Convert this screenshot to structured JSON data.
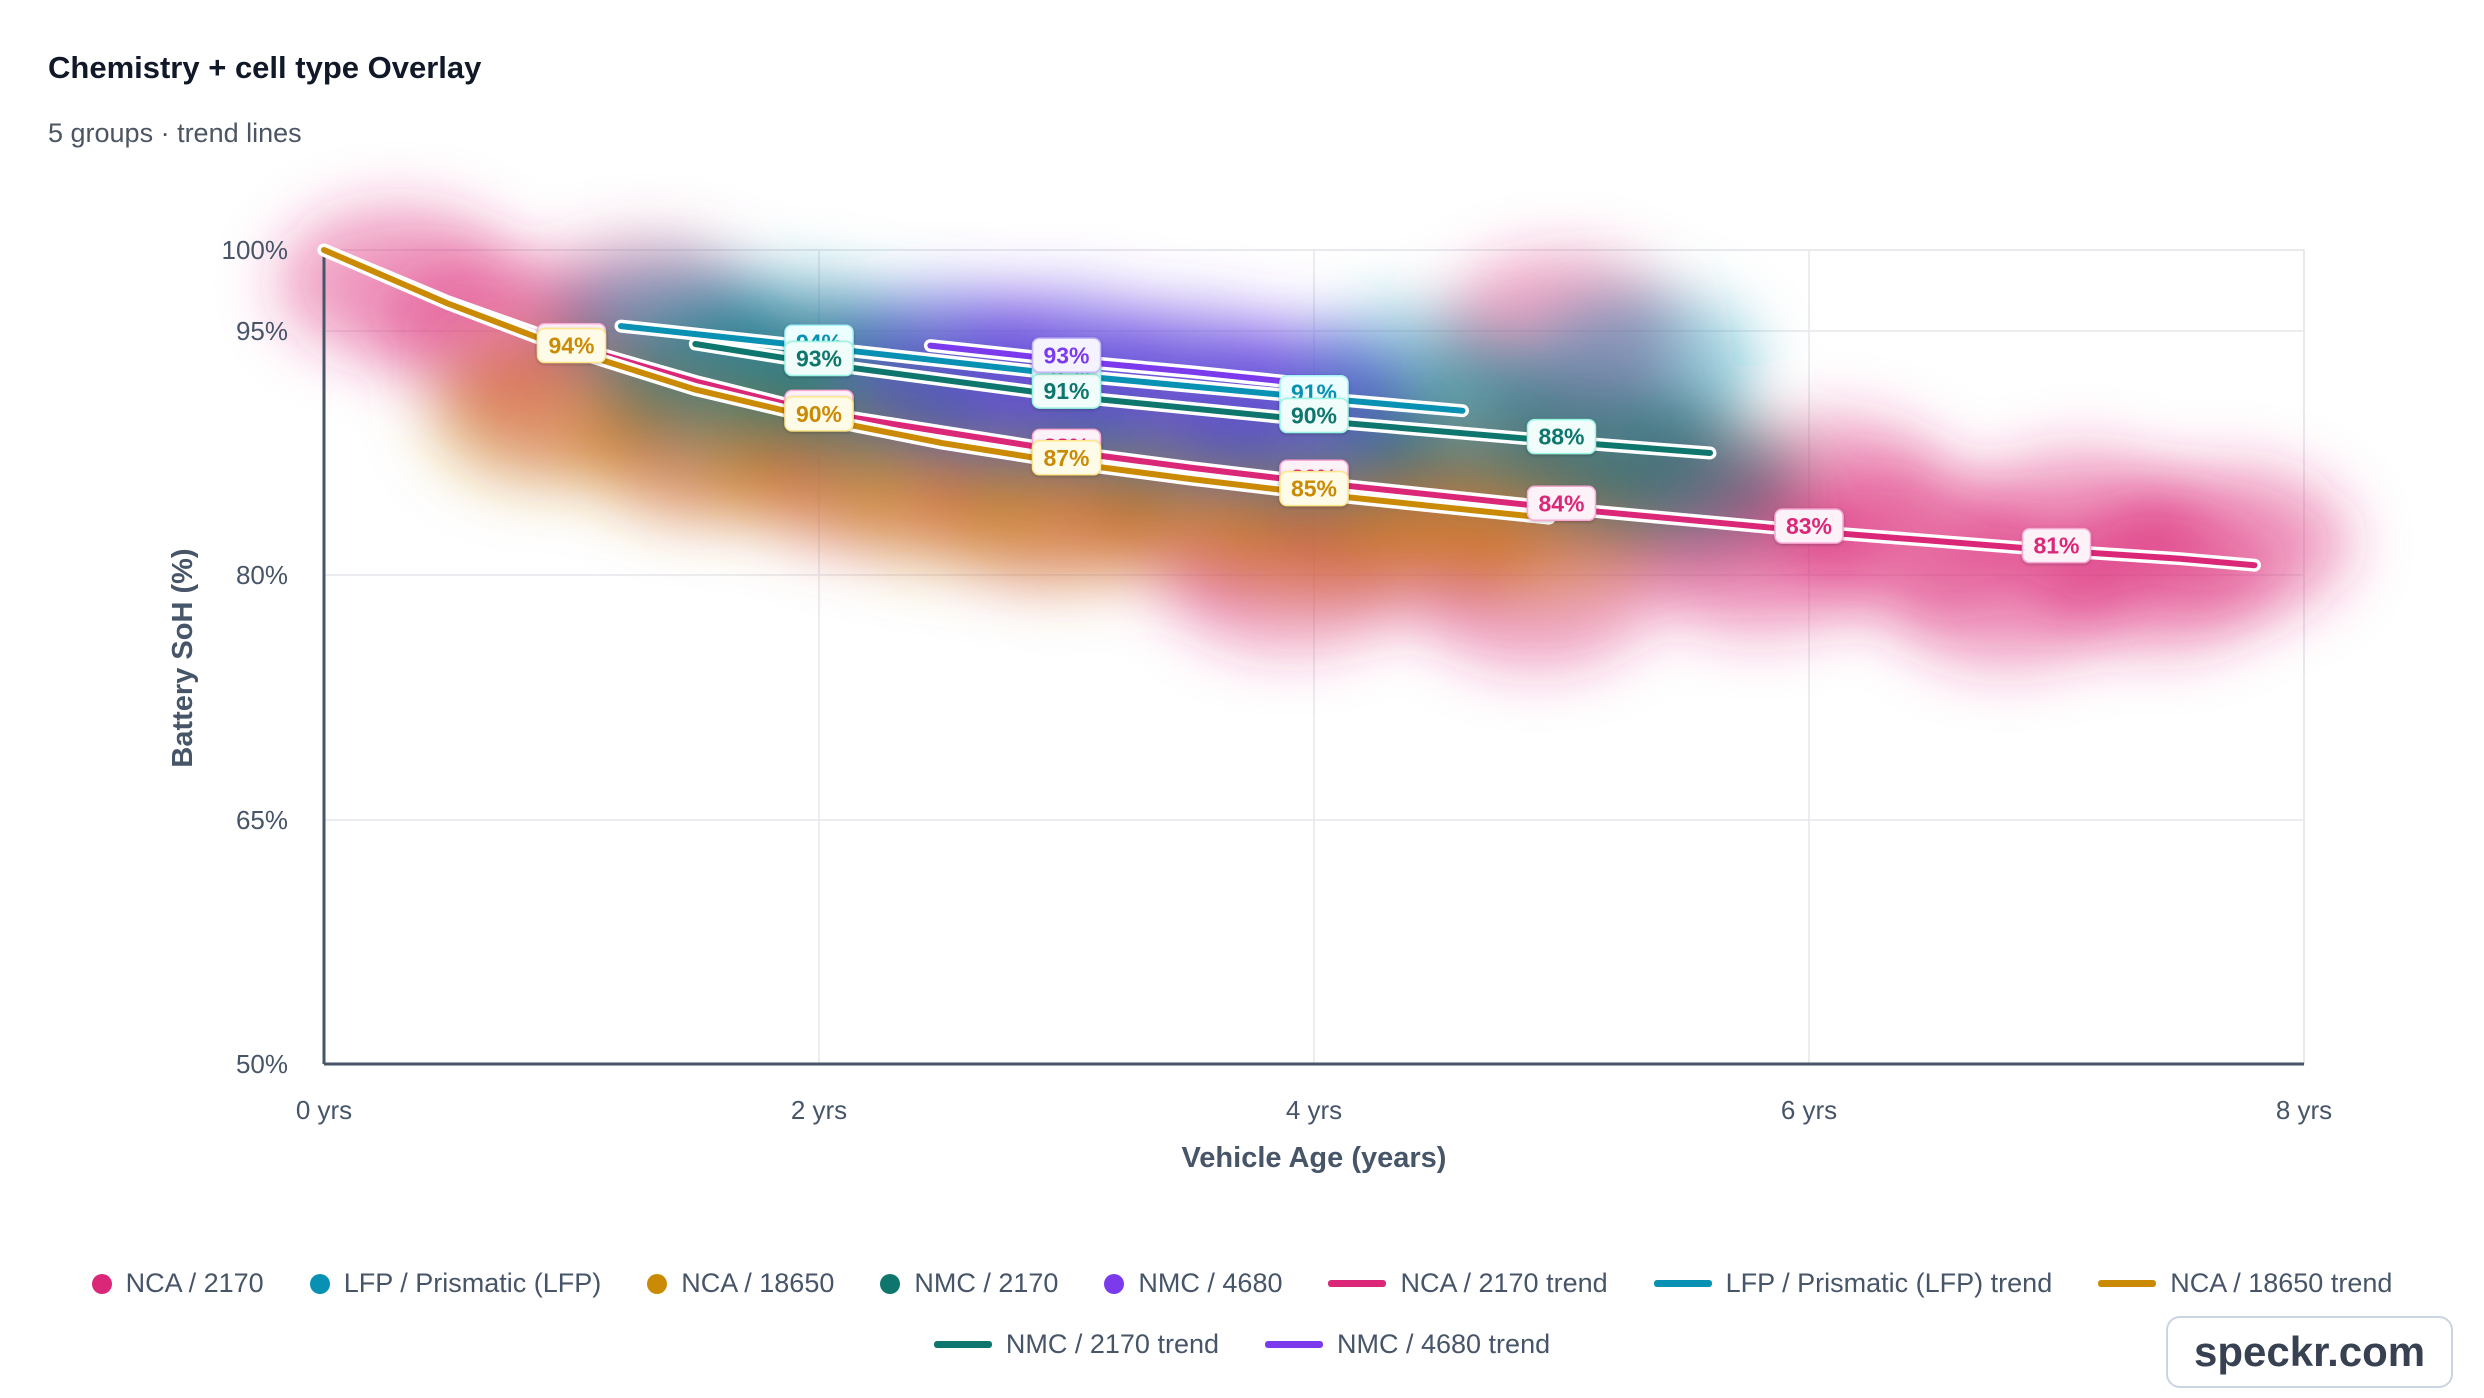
{
  "title": "Chemistry + cell type Overlay",
  "subtitle": "5 groups · trend lines",
  "watermark": "speckr.com",
  "chart_data": {
    "type": "scatter",
    "title": "Chemistry + cell type Overlay",
    "subtitle": "5 groups · trend lines",
    "xlabel": "Vehicle Age (years)",
    "ylabel": "Battery SoH (%)",
    "xlim": [
      0,
      8
    ],
    "ylim": [
      50,
      100
    ],
    "x_ticks": [
      0,
      2,
      4,
      6,
      8
    ],
    "x_tick_labels": [
      "0 yrs",
      "2 yrs",
      "4 yrs",
      "6 yrs",
      "8 yrs"
    ],
    "y_ticks": [
      50,
      65,
      80,
      95,
      100
    ],
    "y_tick_labels": [
      "50%",
      "65%",
      "80%",
      "95%",
      "100%"
    ],
    "grid": true,
    "legend_position": "bottom",
    "scatter_style": "density-cloud",
    "series": [
      {
        "name": "NCA / 2170",
        "kind": "points",
        "color": "#db2777",
        "points": [
          [
            0.3,
            98
          ],
          [
            0.7,
            95
          ],
          [
            1.0,
            91
          ],
          [
            1.3,
            96
          ],
          [
            1.6,
            88
          ],
          [
            2.0,
            92
          ],
          [
            2.2,
            86
          ],
          [
            2.6,
            90
          ],
          [
            2.9,
            84
          ],
          [
            3.2,
            87
          ],
          [
            3.6,
            83
          ],
          [
            3.9,
            80
          ],
          [
            4.1,
            86
          ],
          [
            4.4,
            82
          ],
          [
            4.7,
            85
          ],
          [
            4.9,
            79
          ],
          [
            5.0,
            95
          ],
          [
            5.2,
            88
          ],
          [
            5.5,
            84
          ],
          [
            5.8,
            81
          ],
          [
            6.1,
            85
          ],
          [
            6.4,
            82
          ],
          [
            6.8,
            79
          ],
          [
            7.1,
            83
          ],
          [
            7.4,
            80
          ],
          [
            7.7,
            82
          ]
        ]
      },
      {
        "name": "LFP / Prismatic (LFP)",
        "kind": "points",
        "color": "#0891b2",
        "points": [
          [
            1.4,
            95
          ],
          [
            1.9,
            94
          ],
          [
            2.4,
            93
          ],
          [
            2.9,
            92
          ],
          [
            3.4,
            91
          ],
          [
            3.9,
            90
          ],
          [
            4.4,
            92
          ],
          [
            5.3,
            93
          ]
        ]
      },
      {
        "name": "NCA / 18650",
        "kind": "points",
        "color": "#ca8a04",
        "points": [
          [
            0.9,
            90
          ],
          [
            1.5,
            88
          ],
          [
            2.0,
            87
          ],
          [
            2.5,
            85
          ],
          [
            3.0,
            84
          ],
          [
            3.5,
            85
          ],
          [
            4.0,
            83
          ],
          [
            4.5,
            84
          ],
          [
            4.9,
            83
          ]
        ]
      },
      {
        "name": "NMC / 2170",
        "kind": "points",
        "color": "#0f766e",
        "points": [
          [
            1.6,
            92
          ],
          [
            2.2,
            91
          ],
          [
            2.8,
            90
          ],
          [
            3.4,
            89
          ],
          [
            4.0,
            88
          ],
          [
            4.6,
            89
          ],
          [
            5.2,
            87
          ],
          [
            5.5,
            86
          ]
        ]
      },
      {
        "name": "NMC / 4680",
        "kind": "points",
        "color": "#7c3aed",
        "points": [
          [
            2.6,
            93
          ],
          [
            3.0,
            93
          ],
          [
            3.5,
            92
          ],
          [
            3.9,
            91
          ]
        ]
      },
      {
        "name": "NCA / 2170 trend",
        "kind": "trend",
        "color": "#db2777",
        "x": [
          0,
          0.5,
          1,
          1.5,
          2,
          2.5,
          3,
          3.5,
          4,
          4.5,
          5,
          5.5,
          6,
          6.5,
          7,
          7.5,
          7.8
        ],
        "y": [
          100,
          96.8,
          94.1,
          91.9,
          90.0,
          88.8,
          87.6,
          86.6,
          85.7,
          84.9,
          84.1,
          83.4,
          82.7,
          82.1,
          81.5,
          81.0,
          80.6
        ],
        "labels": [
          {
            "x": 1,
            "y": 94.1,
            "text": "94%"
          },
          {
            "x": 2,
            "y": 90,
            "text": "90%"
          },
          {
            "x": 3,
            "y": 87.6,
            "text": "88%"
          },
          {
            "x": 4,
            "y": 85.7,
            "text": "86%"
          },
          {
            "x": 5,
            "y": 84.1,
            "text": "84%"
          },
          {
            "x": 6,
            "y": 82.7,
            "text": "83%"
          },
          {
            "x": 7,
            "y": 81.5,
            "text": "81%"
          }
        ]
      },
      {
        "name": "LFP / Prismatic (LFP) trend",
        "kind": "trend",
        "color": "#0891b2",
        "x": [
          1.2,
          2,
          3,
          4,
          4.6
        ],
        "y": [
          95.3,
          94.0,
          92.3,
          90.9,
          90.1
        ],
        "labels": [
          {
            "x": 2,
            "y": 94.0,
            "text": "94%"
          },
          {
            "x": 3,
            "y": 92.3,
            "text": "92%"
          },
          {
            "x": 4,
            "y": 90.9,
            "text": "91%"
          }
        ]
      },
      {
        "name": "NCA / 18650 trend",
        "kind": "trend",
        "color": "#ca8a04",
        "x": [
          0,
          0.5,
          1,
          1.5,
          2,
          2.5,
          3,
          3.5,
          4,
          4.5,
          4.95
        ],
        "y": [
          100,
          96.7,
          93.8,
          91.4,
          89.6,
          88.1,
          86.9,
          85.9,
          85.0,
          84.2,
          83.5
        ],
        "labels": [
          {
            "x": 1,
            "y": 93.8,
            "text": "94%"
          },
          {
            "x": 2,
            "y": 89.6,
            "text": "90%"
          },
          {
            "x": 3,
            "y": 86.9,
            "text": "87%"
          },
          {
            "x": 4,
            "y": 85.0,
            "text": "85%"
          }
        ]
      },
      {
        "name": "NMC / 2170 trend",
        "kind": "trend",
        "color": "#0f766e",
        "x": [
          1.5,
          2,
          3,
          4,
          5,
          5.6
        ],
        "y": [
          94.2,
          93.0,
          91.0,
          89.5,
          88.2,
          87.5
        ],
        "labels": [
          {
            "x": 2,
            "y": 93.0,
            "text": "93%"
          },
          {
            "x": 3,
            "y": 91.0,
            "text": "91%"
          },
          {
            "x": 4,
            "y": 89.5,
            "text": "90%"
          },
          {
            "x": 5,
            "y": 88.2,
            "text": "88%"
          }
        ]
      },
      {
        "name": "NMC / 4680 trend",
        "kind": "trend",
        "color": "#7c3aed",
        "x": [
          2.45,
          3,
          3.5,
          3.95
        ],
        "y": [
          94.1,
          93.2,
          92.5,
          91.8
        ],
        "labels": [
          {
            "x": 3,
            "y": 93.2,
            "text": "93%"
          }
        ]
      }
    ]
  },
  "legend": {
    "items": [
      {
        "label": "NCA / 2170",
        "kind": "dot",
        "color": "#db2777"
      },
      {
        "label": "LFP / Prismatic (LFP)",
        "kind": "dot",
        "color": "#0891b2"
      },
      {
        "label": "NCA / 18650",
        "kind": "dot",
        "color": "#ca8a04"
      },
      {
        "label": "NMC / 2170",
        "kind": "dot",
        "color": "#0f766e"
      },
      {
        "label": "NMC / 4680",
        "kind": "dot",
        "color": "#7c3aed"
      },
      {
        "label": "NCA / 2170 trend",
        "kind": "line",
        "color": "#db2777"
      },
      {
        "label": "LFP / Prismatic (LFP) trend",
        "kind": "line",
        "color": "#0891b2"
      },
      {
        "label": "NCA / 18650 trend",
        "kind": "line",
        "color": "#ca8a04"
      },
      {
        "label": "NMC / 2170 trend",
        "kind": "line",
        "color": "#0f766e"
      },
      {
        "label": "NMC / 4680 trend",
        "kind": "line",
        "color": "#7c3aed"
      }
    ]
  }
}
